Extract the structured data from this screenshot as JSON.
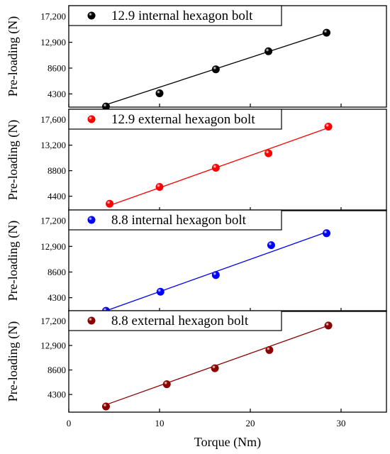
{
  "chart_data": {
    "type": "scatter",
    "layout": "stacked-panels",
    "xlabel": "Torque (Nm)",
    "ylabel": "Pre-loading (N)",
    "xlim": [
      0,
      35
    ],
    "xticks": [
      0,
      10,
      20,
      30
    ],
    "grid": false,
    "legend_placement": "top-left",
    "panels": [
      {
        "series_name": "12.9 internal hexagon bolt",
        "color": "#000000",
        "ylim": [
          2100,
          19000
        ],
        "yticks": [
          4300,
          8600,
          12900,
          17200
        ],
        "ytick_labels": [
          "4300",
          "8600",
          "12,900",
          "17,200"
        ],
        "points": [
          {
            "x": 4.1,
            "y": 2200
          },
          {
            "x": 10.0,
            "y": 4400
          },
          {
            "x": 16.2,
            "y": 8400
          },
          {
            "x": 22.0,
            "y": 11400
          },
          {
            "x": 28.4,
            "y": 14500
          }
        ],
        "fit": [
          [
            4.1,
            2500
          ],
          [
            28.4,
            14500
          ]
        ]
      },
      {
        "series_name": "12.9 external hexagon bolt",
        "color": "#ff0000",
        "ylim": [
          1900,
          19400
        ],
        "yticks": [
          4400,
          8800,
          13200,
          17600
        ],
        "ytick_labels": [
          "4400",
          "8800",
          "13,200",
          "17,600"
        ],
        "points": [
          {
            "x": 4.5,
            "y": 3100
          },
          {
            "x": 10.0,
            "y": 6000
          },
          {
            "x": 16.2,
            "y": 9300
          },
          {
            "x": 22.0,
            "y": 11800
          },
          {
            "x": 28.6,
            "y": 16400
          }
        ],
        "fit": [
          [
            4.5,
            2800
          ],
          [
            28.6,
            16200
          ]
        ]
      },
      {
        "series_name": "8.8 internal hexagon bolt",
        "color": "#0000ff",
        "ylim": [
          2000,
          19000
        ],
        "yticks": [
          4300,
          8600,
          12900,
          17200
        ],
        "ytick_labels": [
          "4300",
          "8600",
          "12,900",
          "17,200"
        ],
        "points": [
          {
            "x": 4.1,
            "y": 2100
          },
          {
            "x": 10.1,
            "y": 5300
          },
          {
            "x": 16.2,
            "y": 8100
          },
          {
            "x": 22.3,
            "y": 13100
          },
          {
            "x": 28.4,
            "y": 15100
          }
        ],
        "fit": [
          [
            4.1,
            2100
          ],
          [
            28.4,
            15300
          ]
        ]
      },
      {
        "series_name": "8.8 external hexagon bolt",
        "color": "#8b0000",
        "ylim": [
          1200,
          19000
        ],
        "yticks": [
          4300,
          8600,
          12900,
          17200
        ],
        "ytick_labels": [
          "4300",
          "8600",
          "12,900",
          "17,200"
        ],
        "points": [
          {
            "x": 4.1,
            "y": 2200
          },
          {
            "x": 10.8,
            "y": 6100
          },
          {
            "x": 16.1,
            "y": 8900
          },
          {
            "x": 22.1,
            "y": 12100
          },
          {
            "x": 28.6,
            "y": 16400
          }
        ],
        "fit": [
          [
            4.1,
            2500
          ],
          [
            28.6,
            16400
          ]
        ]
      }
    ]
  }
}
